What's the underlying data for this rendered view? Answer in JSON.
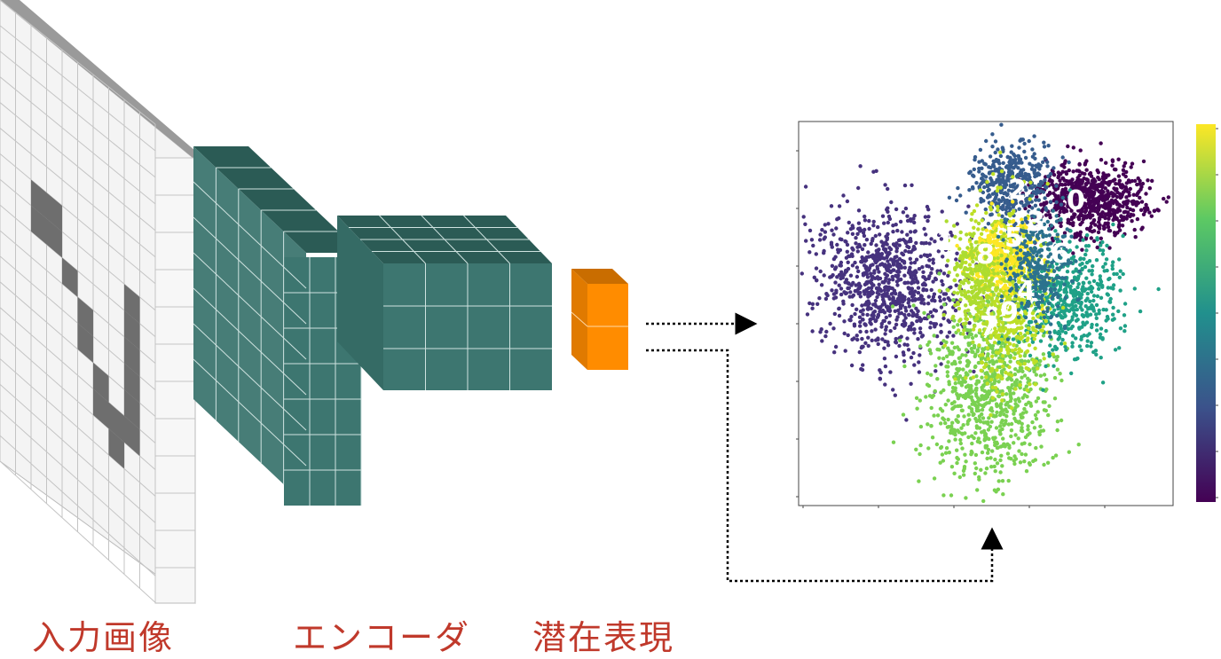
{
  "labels": {
    "input_image": "入力画像",
    "encoder": "エンコーダ",
    "latent": "潜在表現"
  },
  "scatter": {
    "cluster_labels": [
      "0",
      "1",
      "2",
      "3",
      "4",
      "5",
      "6",
      "7",
      "8",
      "9"
    ],
    "colormap": "viridis",
    "colorbar": true
  },
  "colors": {
    "label": "#c0392b",
    "encoder_block": "#3d7670",
    "encoder_top": "#2b5b55",
    "latent": "#ff8c00",
    "input_dark": "#6e6e6e",
    "input_light": "#f2f2f2"
  }
}
